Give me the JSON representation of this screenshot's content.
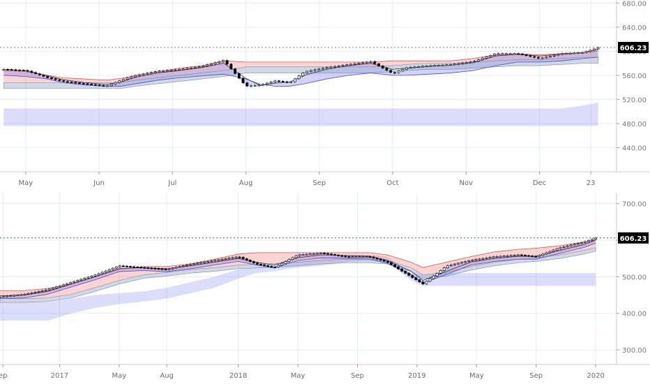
{
  "chart_data": [
    {
      "type": "line",
      "subtype": "ichimoku-candlestick",
      "title": "",
      "xlabel": "",
      "ylabel": "",
      "ylim": [
        400,
        685
      ],
      "y_ticks": [
        "680.00",
        "640.00",
        "600.00",
        "560.00",
        "520.00",
        "480.00",
        "440.00"
      ],
      "y_tick_values": [
        680,
        640,
        600,
        560,
        520,
        480,
        440
      ],
      "x_ticks": [
        "May",
        "Jun",
        "Jul",
        "Aug",
        "Sep",
        "Oct",
        "Nov",
        "Dec",
        "23"
      ],
      "x_tick_index": [
        0.5,
        1.5,
        2.5,
        3.5,
        4.5,
        5.5,
        6.5,
        7.5,
        8.2
      ],
      "x_range": [
        0.15,
        8.55
      ],
      "last_price_label": "606.23",
      "last_price": 606.23,
      "grid": true,
      "series": [
        {
          "role": "price",
          "x": [
            0.2,
            0.5,
            0.8,
            1.0,
            1.3,
            1.6,
            1.8,
            2.0,
            2.3,
            2.6,
            2.9,
            3.2,
            3.5,
            3.7,
            3.9,
            4.1,
            4.3,
            4.6,
            4.9,
            5.2,
            5.5,
            5.7,
            6.0,
            6.3,
            6.6,
            6.9,
            7.2,
            7.5,
            7.8,
            8.1,
            8.3
          ],
          "values": [
            570,
            568,
            556,
            550,
            546,
            542,
            552,
            560,
            567,
            570,
            575,
            585,
            542,
            544,
            551,
            548,
            566,
            573,
            578,
            583,
            563,
            573,
            576,
            578,
            583,
            596,
            596,
            588,
            596,
            598,
            606
          ]
        },
        {
          "role": "tenkan",
          "x": [
            0.2,
            0.5,
            0.8,
            1.0,
            1.3,
            1.6,
            1.8,
            2.0,
            2.3,
            2.6,
            2.9,
            3.2,
            3.5,
            3.7,
            3.9,
            4.1,
            4.3,
            4.6,
            4.9,
            5.2,
            5.5,
            5.7,
            6.0,
            6.3,
            6.6,
            6.9,
            7.2,
            7.5,
            7.8,
            8.1,
            8.3
          ],
          "values": [
            570,
            568,
            559,
            553,
            548,
            545,
            549,
            557,
            564,
            568,
            573,
            580,
            555,
            543,
            547,
            549,
            560,
            570,
            576,
            580,
            570,
            572,
            575,
            577,
            581,
            592,
            595,
            592,
            595,
            598,
            603
          ]
        },
        {
          "role": "kijun",
          "x": [
            0.2,
            0.5,
            0.8,
            1.0,
            1.3,
            1.6,
            1.8,
            2.0,
            2.3,
            2.6,
            2.9,
            3.2,
            3.5,
            3.7,
            3.9,
            4.1,
            4.3,
            4.6,
            4.9,
            5.2,
            5.5,
            5.7,
            6.0,
            6.3,
            6.6,
            6.9,
            7.2,
            7.5,
            7.8,
            8.1,
            8.3
          ],
          "values": [
            568,
            566,
            562,
            556,
            552,
            550,
            550,
            554,
            560,
            564,
            567,
            570,
            562,
            553,
            550,
            550,
            554,
            562,
            568,
            572,
            568,
            568,
            570,
            572,
            576,
            584,
            590,
            590,
            592,
            596,
            598
          ]
        }
      ],
      "cloud": {
        "x": [
          0.2,
          0.5,
          0.8,
          1.0,
          1.3,
          1.6,
          1.8,
          2.0,
          2.3,
          2.6,
          2.9,
          3.2,
          3.5,
          3.7,
          3.9,
          4.1,
          4.3,
          4.6,
          4.9,
          5.2,
          5.5,
          5.7,
          6.0,
          6.3,
          6.6,
          6.9,
          7.2,
          7.5,
          7.8,
          8.1,
          8.3
        ],
        "span_a": [
          568,
          566,
          560,
          556,
          554,
          552,
          555,
          560,
          566,
          572,
          576,
          584,
          582,
          582,
          582,
          582,
          582,
          582,
          582,
          582,
          584,
          584,
          584,
          584,
          588,
          594,
          596,
          594,
          596,
          598,
          600
        ],
        "span_b": [
          548,
          548,
          548,
          548,
          548,
          548,
          548,
          552,
          556,
          560,
          564,
          568,
          574,
          574,
          574,
          574,
          574,
          574,
          574,
          574,
          576,
          578,
          580,
          580,
          582,
          584,
          586,
          586,
          588,
          590,
          590
        ],
        "lower_cloud_a": [
          505,
          505,
          505,
          505,
          505,
          505,
          505,
          505,
          505,
          505,
          505,
          505,
          505,
          505,
          505,
          505,
          505,
          505,
          505,
          505,
          505,
          505,
          505,
          505,
          505,
          505,
          505,
          505,
          505,
          510,
          515
        ],
        "lower_cloud_b": [
          476,
          476,
          476,
          476,
          476,
          476,
          476,
          476,
          476,
          476,
          476,
          476,
          476,
          476,
          476,
          476,
          476,
          476,
          476,
          476,
          476,
          476,
          476,
          476,
          476,
          476,
          476,
          476,
          476,
          476,
          476
        ]
      },
      "colors": {
        "bear_cloud": "#f08080",
        "bull_cloud": "#8080f0",
        "grey_cloud": "#9aa6c0",
        "price": "#000000",
        "label_bg": "#000000"
      }
    },
    {
      "type": "line",
      "subtype": "ichimoku-candlestick",
      "title": "",
      "xlabel": "",
      "ylabel": "",
      "ylim": [
        260,
        730
      ],
      "y_ticks": [
        "700.00",
        "600.00",
        "500.00",
        "400.00",
        "300.00"
      ],
      "y_tick_values": [
        700,
        600,
        500,
        400,
        300
      ],
      "x_ticks": [
        "ep",
        "2017",
        "May",
        "Aug",
        "2018",
        "May",
        "Sep",
        "2019",
        "May",
        "Sep",
        "2020"
      ],
      "x_tick_index": [
        0.05,
        1.0,
        2.0,
        2.8,
        4.0,
        5.0,
        6.0,
        7.0,
        8.0,
        9.0,
        10.0
      ],
      "x_range": [
        0.0,
        10.35
      ],
      "last_price_label": "606.23",
      "last_price": 606.23,
      "grid": true,
      "series": [
        {
          "role": "price",
          "x": [
            0.0,
            0.4,
            0.8,
            1.2,
            1.6,
            2.0,
            2.4,
            2.8,
            3.2,
            3.6,
            4.0,
            4.3,
            4.6,
            5.0,
            5.4,
            5.8,
            6.2,
            6.5,
            6.9,
            7.1,
            7.5,
            7.9,
            8.3,
            8.7,
            9.0,
            9.4,
            9.8,
            10.0
          ],
          "values": [
            445,
            452,
            465,
            485,
            505,
            530,
            525,
            520,
            535,
            545,
            555,
            535,
            525,
            560,
            565,
            555,
            555,
            540,
            500,
            480,
            530,
            545,
            555,
            560,
            555,
            580,
            595,
            606
          ]
        },
        {
          "role": "tenkan",
          "x": [
            0.0,
            0.4,
            0.8,
            1.2,
            1.6,
            2.0,
            2.4,
            2.8,
            3.2,
            3.6,
            4.0,
            4.3,
            4.6,
            5.0,
            5.4,
            5.8,
            6.2,
            6.5,
            6.9,
            7.1,
            7.5,
            7.9,
            8.3,
            8.7,
            9.0,
            9.4,
            9.8,
            10.0
          ],
          "values": [
            448,
            450,
            460,
            480,
            500,
            522,
            525,
            522,
            530,
            540,
            550,
            540,
            532,
            552,
            560,
            558,
            556,
            545,
            515,
            490,
            515,
            540,
            550,
            556,
            556,
            572,
            588,
            600
          ]
        }
      ],
      "cloud": {
        "x": [
          0.0,
          0.4,
          0.8,
          1.2,
          1.6,
          2.0,
          2.4,
          2.8,
          3.2,
          3.6,
          4.0,
          4.3,
          4.6,
          5.0,
          5.4,
          5.8,
          6.2,
          6.5,
          6.9,
          7.1,
          7.5,
          7.9,
          8.3,
          8.7,
          9.0,
          9.4,
          9.8,
          10.0
        ],
        "span_a": [
          462,
          462,
          468,
          480,
          500,
          520,
          528,
          528,
          535,
          548,
          562,
          566,
          566,
          566,
          566,
          566,
          566,
          560,
          540,
          525,
          540,
          555,
          568,
          575,
          578,
          585,
          595,
          600
        ],
        "span_b": [
          440,
          440,
          442,
          452,
          470,
          490,
          505,
          512,
          520,
          525,
          532,
          534,
          536,
          540,
          545,
          548,
          548,
          545,
          525,
          505,
          512,
          528,
          540,
          548,
          552,
          560,
          572,
          580
        ],
        "lower_cloud_a": [
          430,
          430,
          430,
          440,
          450,
          455,
          460,
          470,
          485,
          500,
          520,
          525,
          525,
          540,
          550,
          560,
          560,
          555,
          510,
          505,
          510,
          510,
          510,
          510,
          510,
          510,
          510,
          510
        ],
        "lower_cloud_b": [
          380,
          380,
          380,
          400,
          415,
          425,
          432,
          440,
          455,
          470,
          495,
          510,
          515,
          525,
          530,
          540,
          545,
          540,
          490,
          475,
          475,
          475,
          475,
          475,
          475,
          475,
          475,
          475
        ]
      },
      "colors": {
        "bear_cloud": "#f08080",
        "bull_cloud": "#8080f0",
        "grey_cloud": "#9aa6c0",
        "price": "#000000",
        "label_bg": "#000000"
      }
    }
  ]
}
